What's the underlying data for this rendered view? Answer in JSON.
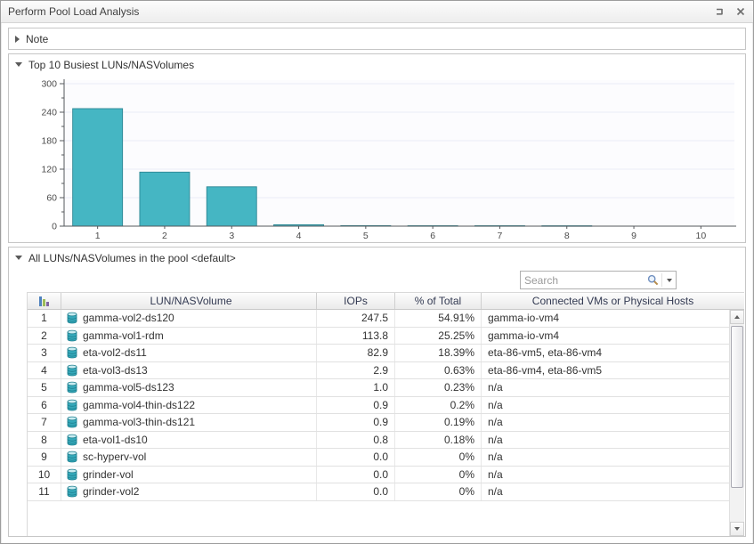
{
  "window": {
    "title": "Perform Pool Load Analysis",
    "controls": {
      "dock": "dock-window",
      "close": "close-window"
    }
  },
  "sections": {
    "note": {
      "label": "Note",
      "collapsed": true
    },
    "chart": {
      "label": "Top 10 Busiest LUNs/NASVolumes",
      "collapsed": false
    },
    "table": {
      "label": "All LUNs/NASVolumes in the pool <default>",
      "collapsed": false
    }
  },
  "search": {
    "placeholder": "Search"
  },
  "chart_data": {
    "type": "bar",
    "title": "Top 10 Busiest LUNs/NASVolumes",
    "categories": [
      "1",
      "2",
      "3",
      "4",
      "5",
      "6",
      "7",
      "8",
      "9",
      "10"
    ],
    "values": [
      247.5,
      113.8,
      82.9,
      2.9,
      1.0,
      0.9,
      0.9,
      0.8,
      0.0,
      0.0
    ],
    "xlabel": "",
    "ylabel": "",
    "ylim": [
      0,
      300
    ],
    "yticks": [
      0,
      60,
      120,
      180,
      240,
      300
    ],
    "minor_step": 30,
    "grid": true,
    "legend": false,
    "bar_color": "#45b6c3",
    "bar_border": "#2d8794",
    "grid_color": "#eaecf5",
    "axis_color": "#55585c",
    "tick_label_color": "#4c4c4c"
  },
  "table": {
    "columns": [
      "",
      "LUN/NASVolume",
      "IOPs",
      "% of Total",
      "Connected VMs or Physical Hosts"
    ],
    "rows": [
      {
        "rank": "1",
        "name": "gamma-vol2-ds120",
        "iops": "247.5",
        "pct": "54.91%",
        "vms": "gamma-io-vm4"
      },
      {
        "rank": "2",
        "name": "gamma-vol1-rdm",
        "iops": "113.8",
        "pct": "25.25%",
        "vms": "gamma-io-vm4"
      },
      {
        "rank": "3",
        "name": "eta-vol2-ds11",
        "iops": "82.9",
        "pct": "18.39%",
        "vms": "eta-86-vm5, eta-86-vm4"
      },
      {
        "rank": "4",
        "name": "eta-vol3-ds13",
        "iops": "2.9",
        "pct": "0.63%",
        "vms": "eta-86-vm4, eta-86-vm5"
      },
      {
        "rank": "5",
        "name": "gamma-vol5-ds123",
        "iops": "1.0",
        "pct": "0.23%",
        "vms": "n/a"
      },
      {
        "rank": "6",
        "name": "gamma-vol4-thin-ds122",
        "iops": "0.9",
        "pct": "0.2%",
        "vms": "n/a"
      },
      {
        "rank": "7",
        "name": "gamma-vol3-thin-ds121",
        "iops": "0.9",
        "pct": "0.19%",
        "vms": "n/a"
      },
      {
        "rank": "8",
        "name": "eta-vol1-ds10",
        "iops": "0.8",
        "pct": "0.18%",
        "vms": "n/a"
      },
      {
        "rank": "9",
        "name": "sc-hyperv-vol",
        "iops": "0.0",
        "pct": "0%",
        "vms": "n/a"
      },
      {
        "rank": "10",
        "name": "grinder-vol",
        "iops": "0.0",
        "pct": "0%",
        "vms": "n/a"
      },
      {
        "rank": "11",
        "name": "grinder-vol2",
        "iops": "0.0",
        "pct": "0%",
        "vms": "n/a"
      }
    ],
    "icons": {
      "rank_header": "ranking-bars",
      "row": "volume-cylinder",
      "rank_bar_colors": [
        "#4f81bd",
        "#9bbb59",
        "#8064a2"
      ],
      "volume_color": "#35a9ba",
      "volume_outline": "#1f7f8f",
      "volume_top": "#c9ecf1"
    }
  }
}
